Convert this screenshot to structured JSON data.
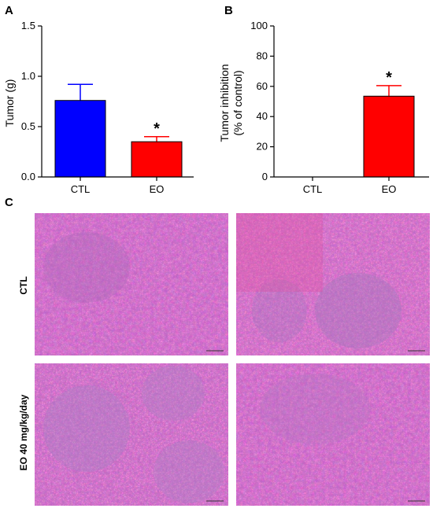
{
  "figure": {
    "panels": [
      "A",
      "B",
      "C"
    ],
    "row_labels": [
      "CTL",
      "EO 40 mg/kg/day"
    ]
  },
  "chart_data": [
    {
      "type": "bar",
      "panel": "A",
      "categories": [
        "CTL",
        "EO"
      ],
      "values": [
        0.76,
        0.35
      ],
      "errors": [
        0.16,
        0.05
      ],
      "colors": [
        "#0000ff",
        "#ff0000"
      ],
      "error_colors": [
        "#0000ff",
        "#ff0000"
      ],
      "annotations": [
        "",
        "*"
      ],
      "ylabel": "Tumor (g)",
      "ylim": [
        0,
        1.5
      ],
      "yticks": [
        0.0,
        0.5,
        1.0,
        1.5
      ],
      "ytick_labels": [
        "0.0",
        "0.5",
        "1.0",
        "1.5"
      ]
    },
    {
      "type": "bar",
      "panel": "B",
      "categories": [
        "CTL",
        "EO"
      ],
      "values": [
        0,
        53.5
      ],
      "errors": [
        0,
        7
      ],
      "colors": [
        "#ff0000",
        "#ff0000"
      ],
      "error_colors": [
        "#ff0000",
        "#ff0000"
      ],
      "annotations": [
        "",
        "*"
      ],
      "ylabel": "Tumor inhibition\n(% of control)",
      "ylim": [
        0,
        100
      ],
      "yticks": [
        0,
        20,
        40,
        60,
        80,
        100
      ],
      "ytick_labels": [
        "0",
        "20",
        "40",
        "60",
        "80",
        "100"
      ]
    }
  ]
}
